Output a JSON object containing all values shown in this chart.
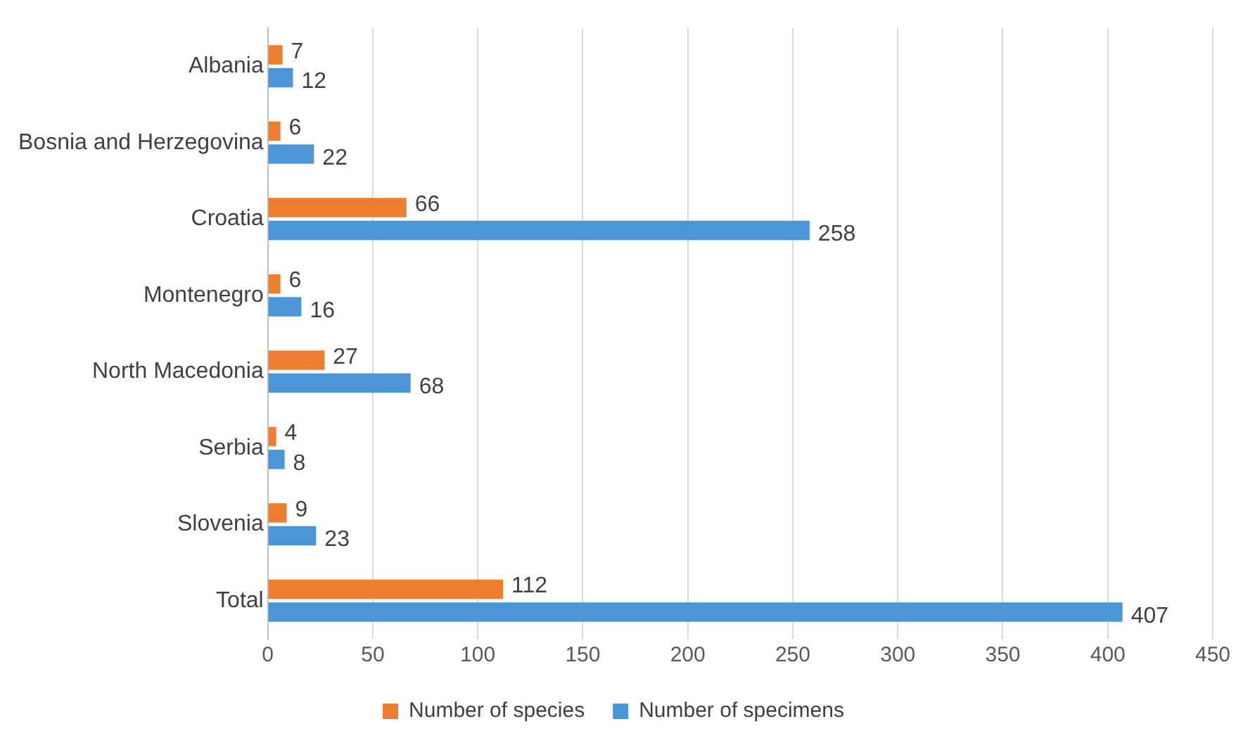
{
  "chart_data": {
    "type": "bar",
    "orientation": "horizontal",
    "categories": [
      "Albania",
      "Bosnia and Herzegovina",
      "Croatia",
      "Montenegro",
      "North Macedonia",
      "Serbia",
      "Slovenia",
      "Total"
    ],
    "series": [
      {
        "name": "Number of species",
        "color": "#ed7d31",
        "values": [
          7,
          6,
          66,
          6,
          27,
          4,
          9,
          112
        ]
      },
      {
        "name": "Number of specimens",
        "color": "#4a96d6",
        "values": [
          12,
          22,
          258,
          16,
          68,
          8,
          23,
          407
        ]
      }
    ],
    "xlim": [
      0,
      450
    ],
    "xticks": [
      0,
      50,
      100,
      150,
      200,
      250,
      300,
      350,
      400,
      450
    ],
    "grid": "x",
    "legend": "bottom",
    "data_labels": true
  }
}
